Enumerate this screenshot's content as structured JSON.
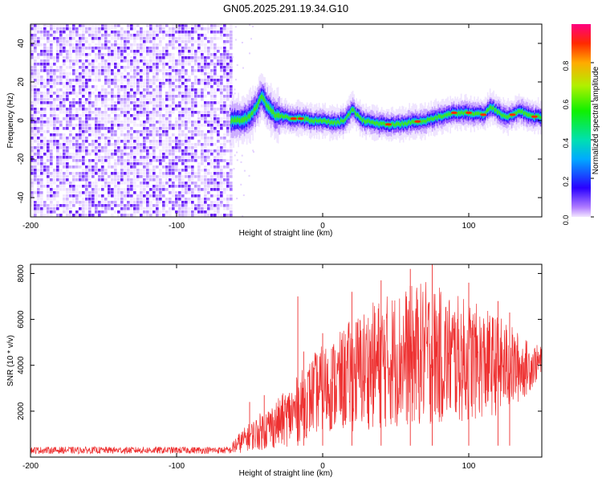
{
  "title": "GN05.2025.291.19.34.G10",
  "chart_data": [
    {
      "type": "heatmap",
      "title": "GN05.2025.291.19.34.G10",
      "xlabel": "Height of straight line (km)",
      "ylabel": "Frequency (Hz)",
      "xlim": [
        -200,
        150
      ],
      "ylim": [
        -50,
        50
      ],
      "x_ticks": [
        -200,
        -100,
        0,
        100
      ],
      "x_tick_labels": [
        "-200",
        "-100",
        "0",
        "100"
      ],
      "y_ticks": [
        -40,
        -20,
        0,
        20,
        40
      ],
      "y_tick_labels": [
        "-40",
        "-20",
        "0",
        "20",
        "40"
      ],
      "noise_region_x": [
        -200,
        -63
      ],
      "signal_start_x": -63,
      "signal_track": {
        "x": [
          -63,
          -55,
          -50,
          -45,
          -42,
          -40,
          -37,
          -33,
          -28,
          -22,
          -15,
          -8,
          0,
          5,
          10,
          15,
          20,
          23,
          27,
          33,
          40,
          50,
          60,
          70,
          80,
          90,
          100,
          110,
          115,
          120,
          125,
          130,
          135,
          140,
          145,
          150
        ],
        "freq": [
          0,
          0,
          2,
          8,
          13,
          10,
          6,
          3,
          2,
          1,
          1,
          0,
          0,
          -1,
          -1,
          0,
          6,
          3,
          0,
          -1,
          -2,
          -2,
          -1,
          0,
          2,
          4,
          4,
          3,
          7,
          4,
          2,
          3,
          5,
          3,
          2,
          2
        ]
      },
      "colorbar": {
        "label": "Normalized spectral amplitude",
        "min": 0.0,
        "max": 1.0,
        "ticks": [
          0.0,
          0.2,
          0.4,
          0.6,
          0.8
        ],
        "tick_labels": [
          "0.0",
          "0.2",
          "0.4",
          "0.6",
          "0.8"
        ]
      }
    },
    {
      "type": "line",
      "xlabel": "Height of straight line (km)",
      "ylabel": "SNR (10 * v/v)",
      "xlim": [
        -200,
        150
      ],
      "ylim": [
        0,
        8400
      ],
      "x_ticks": [
        -200,
        -100,
        0,
        100
      ],
      "x_tick_labels": [
        "-200",
        "-100",
        "0",
        "100"
      ],
      "y_ticks": [
        2000,
        4000,
        6000,
        8000
      ],
      "y_tick_labels": [
        "2000",
        "4000",
        "6000",
        "8000"
      ],
      "color": "#ee3030",
      "series": [
        {
          "name": "SNR",
          "envelope_x": [
            -200,
            -63,
            -60,
            -50,
            -40,
            -30,
            -20,
            -12,
            -5,
            0,
            10,
            20,
            30,
            40,
            50,
            60,
            70,
            80,
            90,
            100,
            110,
            120,
            130,
            140,
            150
          ],
          "envelope_mean": [
            300,
            300,
            500,
            900,
            1200,
            1500,
            1900,
            2400,
            2800,
            3000,
            3200,
            3600,
            3900,
            4100,
            4300,
            4400,
            4500,
            4400,
            4300,
            4200,
            4100,
            4000,
            3900,
            3900,
            4200
          ],
          "envelope_amp": [
            150,
            150,
            400,
            600,
            900,
            1100,
            1400,
            1600,
            1800,
            1900,
            2100,
            2500,
            2700,
            2900,
            3000,
            3100,
            3200,
            3000,
            2800,
            2700,
            2400,
            2200,
            1800,
            1200,
            600
          ],
          "spikes": [
            [
              -50,
              2400
            ],
            [
              -40,
              2700
            ],
            [
              -17,
              7000
            ],
            [
              -13,
              4600
            ],
            [
              0,
              5400
            ],
            [
              20,
              7200
            ],
            [
              40,
              7700
            ],
            [
              60,
              8200
            ],
            [
              75,
              8400
            ],
            [
              100,
              7600
            ],
            [
              120,
              6800
            ],
            [
              128,
              6300
            ]
          ]
        }
      ]
    }
  ]
}
